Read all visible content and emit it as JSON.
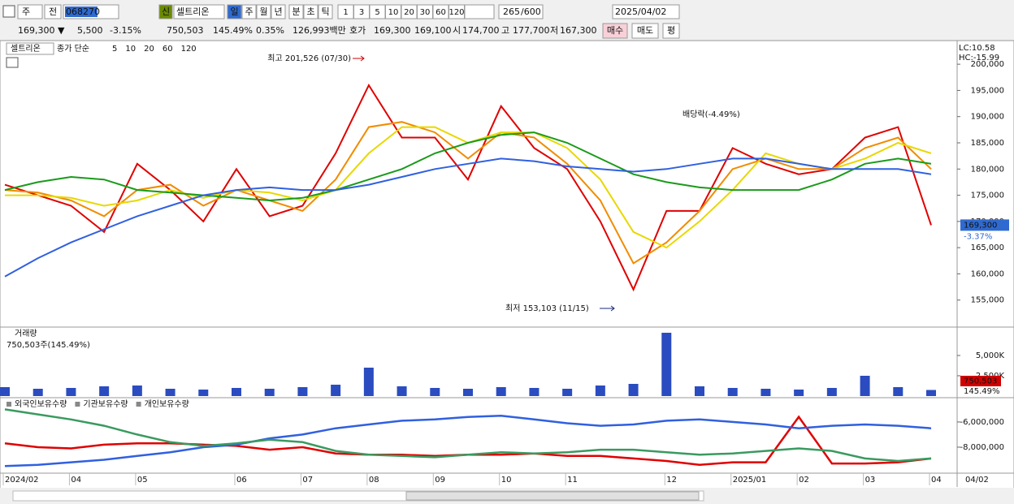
{
  "toolbar": {
    "period_select": "주",
    "prev_button": "전",
    "stock_code": "068270",
    "badge": "신",
    "stock_name": "셀트리온",
    "periods": [
      "일",
      "주",
      "월",
      "년",
      "분",
      "초",
      "틱"
    ],
    "intervals": [
      "1",
      "3",
      "5",
      "10",
      "20",
      "30",
      "60",
      "120"
    ],
    "count": "265",
    "max_count": "/600",
    "date": "2025/04/02"
  },
  "info": {
    "price": "169,300 ▼",
    "change": "5,500",
    "change_rate": "-3.15%",
    "volume": "750,503",
    "volume_rate": "145.49%",
    "turnover": "0.35%",
    "amount": "126,993백만",
    "ask_label": "호가",
    "ask": "169,300",
    "bid": "169,100",
    "open_label": "시",
    "open": "174,700",
    "high_label": "고",
    "high": "177,700",
    "low_label": "저",
    "low": "167,300",
    "buy": "매수",
    "sell": "매도",
    "avg": "평"
  },
  "chart_data": [
    {
      "type": "line",
      "title": "셀트리온",
      "legend_prefix": "종가 단순",
      "ylim": [
        150000,
        204200
      ],
      "yticks": [
        {
          "value": 155000,
          "label": "155,000"
        },
        {
          "value": 160000,
          "label": "160,000"
        },
        {
          "value": 165000,
          "label": "165,000"
        },
        {
          "value": 170000,
          "label": "170,000"
        },
        {
          "value": 175000,
          "label": "175,000"
        },
        {
          "value": 180000,
          "label": "180,000"
        },
        {
          "value": 185000,
          "label": "185,000"
        },
        {
          "value": 190000,
          "label": "190,000"
        },
        {
          "value": 195000,
          "label": "195,000"
        },
        {
          "value": 200000,
          "label": "200,000"
        }
      ],
      "annotations": [
        "최고 201,526 (07/30)",
        "최저 153,103 (11/15)",
        "배당락(-4.49%)"
      ],
      "lc": "LC:10.58",
      "hc": "HC:-15.99",
      "last_label": "169,300",
      "last_change": "-3.37%",
      "series": [
        {
          "name": "5",
          "color": "#e00000",
          "values": [
            177000,
            175000,
            173000,
            168000,
            181000,
            176000,
            170000,
            180000,
            171000,
            173000,
            183000,
            196000,
            186000,
            186000,
            178000,
            192000,
            184000,
            180000,
            170000,
            157000,
            172000,
            172000,
            184000,
            181000,
            179000,
            180000,
            186000,
            188000,
            169300
          ]
        },
        {
          "name": "10",
          "color": "#f08c00",
          "values": [
            176000,
            175500,
            174000,
            171000,
            176000,
            177000,
            173000,
            176000,
            174000,
            172000,
            178000,
            188000,
            189000,
            187000,
            182000,
            187000,
            186000,
            181000,
            174000,
            162000,
            166000,
            172000,
            180000,
            182000,
            180000,
            180000,
            184000,
            186000,
            180000
          ]
        },
        {
          "name": "20",
          "color": "#e8d800",
          "values": [
            175000,
            175000,
            174500,
            173000,
            174000,
            176000,
            174500,
            176000,
            175500,
            174000,
            176000,
            183000,
            188000,
            188000,
            185000,
            187000,
            187000,
            184000,
            178000,
            168000,
            165000,
            170000,
            176000,
            183000,
            181000,
            180000,
            182000,
            185000,
            183000
          ]
        },
        {
          "name": "60",
          "color": "#1a9a1a",
          "values": [
            176000,
            177500,
            178500,
            178000,
            176000,
            175500,
            175000,
            174500,
            174000,
            174500,
            176000,
            178000,
            180000,
            183000,
            185000,
            186500,
            187000,
            185000,
            182000,
            179000,
            177500,
            176500,
            176000,
            176000,
            176000,
            178000,
            181000,
            182000,
            181000
          ]
        },
        {
          "name": "120",
          "color": "#3060e0",
          "values": [
            159500,
            163000,
            166000,
            168500,
            171000,
            173000,
            175000,
            176000,
            176500,
            176000,
            176000,
            177000,
            178500,
            180000,
            181000,
            182000,
            181500,
            180500,
            180000,
            179500,
            180000,
            181000,
            182000,
            182000,
            181000,
            180000,
            180000,
            180000,
            179000
          ]
        }
      ]
    },
    {
      "type": "bar",
      "title": "거래량",
      "subtitle": "750,503주(145.49%)",
      "color": "#2a4cc0",
      "ylim": [
        0,
        8400000
      ],
      "yticks": [
        {
          "value": 2500000,
          "label": "2,500K"
        },
        {
          "value": 5000000,
          "label": "5,000K"
        }
      ],
      "last_label": "750,503",
      "last_rate": "145.49%",
      "values": [
        1100000,
        900000,
        1000000,
        1200000,
        1300000,
        900000,
        800000,
        1000000,
        900000,
        1100000,
        1400000,
        3500000,
        1200000,
        1000000,
        900000,
        1100000,
        1000000,
        900000,
        1300000,
        1500000,
        7800000,
        1200000,
        1000000,
        900000,
        800000,
        1000000,
        2500000,
        1100000,
        750503
      ]
    },
    {
      "type": "line",
      "categories": [
        "2024/02",
        null,
        "04",
        null,
        "05",
        null,
        null,
        "06",
        null,
        "07",
        null,
        "08",
        null,
        "09",
        null,
        "10",
        null,
        "11",
        null,
        null,
        "12",
        null,
        "2025/01",
        null,
        "02",
        null,
        "03",
        null,
        "04"
      ],
      "cursor_label": "04/02",
      "ylim": [
        -10000000,
        -4200000
      ],
      "yticks": [
        {
          "value": -8000000,
          "label": "-8,000,000"
        },
        {
          "value": -6000000,
          "label": "-6,000,000"
        }
      ],
      "series": [
        {
          "name": "외국인보유수량",
          "color": "#e00000",
          "values": [
            -7700000,
            -8000000,
            -8100000,
            -7800000,
            -7700000,
            -7700000,
            -7800000,
            -7900000,
            -8200000,
            -8000000,
            -8500000,
            -8600000,
            -8600000,
            -8700000,
            -8600000,
            -8600000,
            -8500000,
            -8700000,
            -8700000,
            -8900000,
            -9100000,
            -9400000,
            -9200000,
            -9200000,
            -5600000,
            -9300000,
            -9300000,
            -9200000,
            -8900000
          ]
        },
        {
          "name": "기관보유수량",
          "color": "#3060e0",
          "values": [
            -9500000,
            -9400000,
            -9200000,
            -9000000,
            -8700000,
            -8400000,
            -8000000,
            -7800000,
            -7300000,
            -7000000,
            -6500000,
            -6200000,
            -5900000,
            -5800000,
            -5600000,
            -5500000,
            -5800000,
            -6100000,
            -6300000,
            -6200000,
            -5900000,
            -5800000,
            -6000000,
            -6200000,
            -6500000,
            -6300000,
            -6200000,
            -6300000,
            -6500000
          ]
        },
        {
          "name": "개인보유수량",
          "color": "#3a9a60",
          "values": [
            -5000000,
            -5400000,
            -5800000,
            -6300000,
            -7000000,
            -7600000,
            -7900000,
            -7700000,
            -7400000,
            -7600000,
            -8300000,
            -8600000,
            -8700000,
            -8800000,
            -8600000,
            -8400000,
            -8500000,
            -8400000,
            -8200000,
            -8200000,
            -8400000,
            -8600000,
            -8500000,
            -8300000,
            -8100000,
            -8300000,
            -8900000,
            -9100000,
            -8900000
          ]
        }
      ]
    }
  ]
}
